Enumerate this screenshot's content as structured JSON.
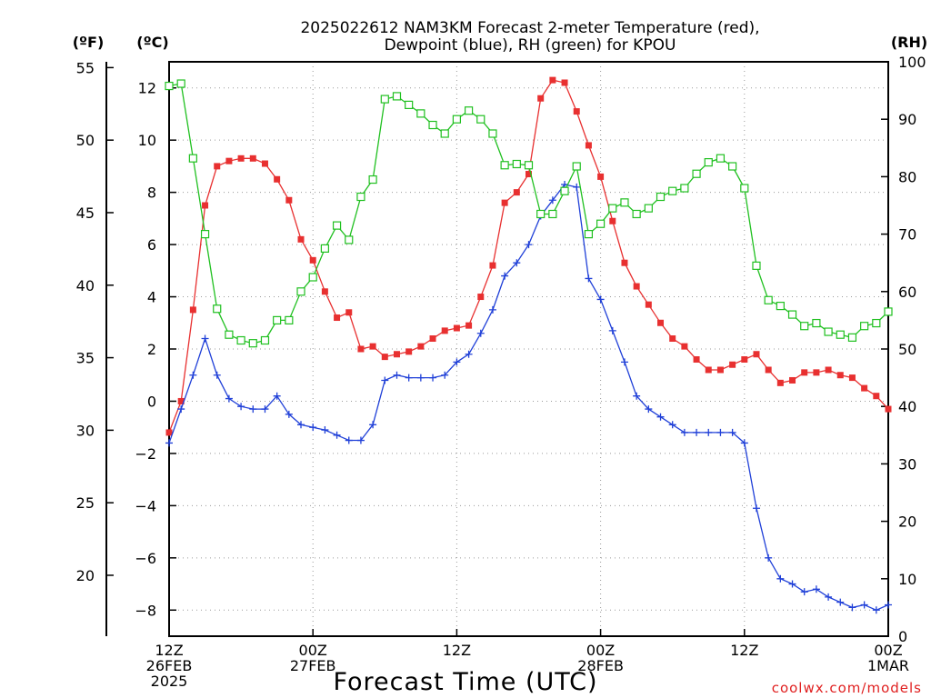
{
  "chart_data": {
    "type": "line",
    "title_line1": "2025022612 NAM3KM Forecast 2-meter Temperature (red),",
    "title_line2": "Dewpoint (blue), RH (green) for KPOU",
    "xlabel": "Forecast Time (UTC)",
    "credit": "coolwx.com/models",
    "units": {
      "fahrenheit": "(ºF)",
      "celsius": "(ºC)",
      "rh": "(RH)"
    },
    "x": [
      0,
      1,
      2,
      3,
      4,
      5,
      6,
      7,
      8,
      9,
      10,
      11,
      12,
      13,
      14,
      15,
      16,
      17,
      18,
      19,
      20,
      21,
      22,
      23,
      24,
      25,
      26,
      27,
      28,
      29,
      30,
      31,
      32,
      33,
      34,
      35,
      36,
      37,
      38,
      39,
      40,
      41,
      42,
      43,
      44,
      45,
      46,
      47,
      48,
      49,
      50,
      51,
      52,
      53,
      54,
      55,
      56,
      57,
      58,
      59,
      60
    ],
    "x_unit": "forecast hour from 12Z 26FEB 2025",
    "xlim": [
      0,
      60
    ],
    "x_ticks": [
      {
        "hour": 0,
        "lines": [
          "12Z",
          "26FEB",
          "2025"
        ]
      },
      {
        "hour": 12,
        "lines": [
          "00Z",
          "27FEB"
        ]
      },
      {
        "hour": 24,
        "lines": [
          "12Z"
        ]
      },
      {
        "hour": 36,
        "lines": [
          "00Z",
          "28FEB"
        ]
      },
      {
        "hour": 48,
        "lines": [
          "12Z"
        ]
      },
      {
        "hour": 60,
        "lines": [
          "00Z",
          "1MAR"
        ]
      }
    ],
    "ylim_celsius": [
      -9,
      13
    ],
    "yticks_celsius": [
      -8,
      -6,
      -4,
      -2,
      0,
      2,
      4,
      6,
      8,
      10,
      12
    ],
    "yticks_fahrenheit": [
      20,
      25,
      30,
      35,
      40,
      45,
      50,
      55
    ],
    "ylim_rh": [
      0,
      100
    ],
    "yticks_rh": [
      0,
      10,
      20,
      30,
      40,
      50,
      60,
      70,
      80,
      90,
      100
    ],
    "grid": true,
    "series": [
      {
        "key": "temperature",
        "axis": "celsius",
        "color": "#e83030",
        "marker": "filled-square",
        "values": [
          -1.2,
          0.0,
          3.5,
          7.5,
          9.0,
          9.2,
          9.3,
          9.3,
          9.1,
          8.5,
          7.7,
          6.2,
          5.4,
          4.2,
          3.2,
          3.4,
          2.0,
          2.1,
          1.7,
          1.8,
          1.9,
          2.1,
          2.4,
          2.7,
          2.8,
          2.9,
          4.0,
          5.2,
          7.6,
          8.0,
          8.7,
          11.6,
          12.3,
          12.2,
          11.1,
          9.8,
          8.6,
          6.9,
          5.3,
          4.4,
          3.7,
          3.0,
          2.4,
          2.1,
          1.6,
          1.2,
          1.2,
          1.4,
          1.6,
          1.8,
          1.2,
          0.7,
          0.8,
          1.1,
          1.1,
          1.2,
          1.0,
          0.9,
          0.5,
          0.2,
          -0.3
        ]
      },
      {
        "key": "dewpoint",
        "axis": "celsius",
        "color": "#2040d8",
        "marker": "plus",
        "values": [
          -1.6,
          -0.3,
          1.0,
          2.4,
          1.0,
          0.1,
          -0.2,
          -0.3,
          -0.3,
          0.2,
          -0.5,
          -0.9,
          -1.0,
          -1.1,
          -1.3,
          -1.5,
          -1.5,
          -0.9,
          0.8,
          1.0,
          0.9,
          0.9,
          0.9,
          1.0,
          1.5,
          1.8,
          2.6,
          3.5,
          4.8,
          5.3,
          6.0,
          7.1,
          7.7,
          8.3,
          8.2,
          4.7,
          3.9,
          2.7,
          1.5,
          0.2,
          -0.3,
          -0.6,
          -0.9,
          -1.2,
          -1.2,
          -1.2,
          -1.2,
          -1.2,
          -1.6,
          -4.1,
          -6.0,
          -6.8,
          -7.0,
          -7.3,
          -7.2,
          -7.5,
          -7.7,
          -7.9,
          -7.8,
          -8.0,
          -7.8
        ]
      },
      {
        "key": "rh",
        "axis": "rh",
        "color": "#20c020",
        "marker": "open-square",
        "values": [
          95.8,
          96.2,
          83.2,
          70.0,
          57.0,
          52.5,
          51.5,
          51.0,
          51.5,
          55.0,
          55.0,
          60.0,
          62.5,
          67.5,
          71.5,
          69.0,
          76.5,
          79.5,
          93.5,
          94.0,
          92.5,
          91.0,
          89.0,
          87.5,
          90.0,
          91.5,
          90.0,
          87.5,
          82.0,
          82.2,
          82.0,
          73.5,
          73.5,
          77.5,
          81.8,
          70.0,
          71.8,
          74.5,
          75.5,
          73.5,
          74.5,
          76.5,
          77.5,
          78.0,
          80.5,
          82.5,
          83.2,
          81.8,
          78.0,
          64.5,
          58.5,
          57.5,
          56.0,
          54.0,
          54.5,
          53.0,
          52.5,
          52.0,
          54.0,
          54.5,
          56.5
        ]
      }
    ]
  }
}
